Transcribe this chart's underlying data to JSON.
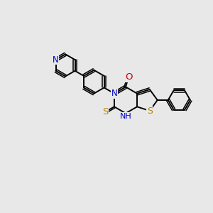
{
  "background_color": "#e8e8e8",
  "bond_color": "#000000",
  "N_color": "#0000cc",
  "O_color": "#cc0000",
  "S_color": "#b8860b",
  "figsize": [
    3.0,
    3.0
  ],
  "dpi": 100,
  "xlim": [
    0,
    10
  ],
  "ylim": [
    0,
    10
  ]
}
